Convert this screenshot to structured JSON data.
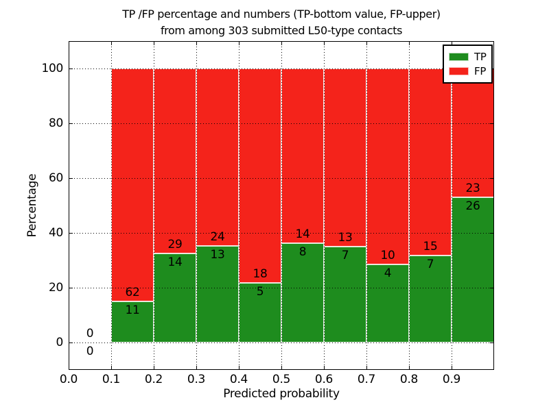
{
  "figure": {
    "title_line1": "TP /FP percentage and numbers (TP-bottom value, FP-upper)",
    "title_line2": "from among 303 submitted L50-type contacts"
  },
  "chart_data": {
    "type": "bar",
    "variant": "stacked-percentage",
    "title": "TP /FP percentage and numbers (TP-bottom value, FP-upper)\nfrom among 303 submitted L50-type contacts",
    "xlabel": "Predicted probability",
    "ylabel": "Percentage",
    "xlim": [
      0.0,
      1.0
    ],
    "ylim": [
      -10,
      110
    ],
    "x_tick_labels": [
      "0.0",
      "0.1",
      "0.2",
      "0.3",
      "0.4",
      "0.5",
      "0.6",
      "0.7",
      "0.8",
      "0.9"
    ],
    "y_tick_values": [
      0,
      20,
      40,
      60,
      80,
      100
    ],
    "grid": true,
    "grid_style": "dotted",
    "bin_edges": [
      0.0,
      0.1,
      0.2,
      0.3,
      0.4,
      0.5,
      0.6,
      0.7,
      0.8,
      0.9,
      1.0
    ],
    "series": [
      {
        "name": "TP",
        "color": "#1e8c1e",
        "counts": [
          0,
          11,
          14,
          13,
          5,
          8,
          7,
          4,
          7,
          26
        ]
      },
      {
        "name": "FP",
        "color": "#f4231b",
        "counts": [
          0,
          62,
          29,
          24,
          18,
          14,
          13,
          10,
          15,
          23
        ]
      }
    ],
    "total_contacts_in_title": 303,
    "legend": {
      "position": "upper right",
      "entries": [
        {
          "label": "TP",
          "color": "#1e8c1e"
        },
        {
          "label": "FP",
          "color": "#f4231b"
        }
      ]
    }
  }
}
